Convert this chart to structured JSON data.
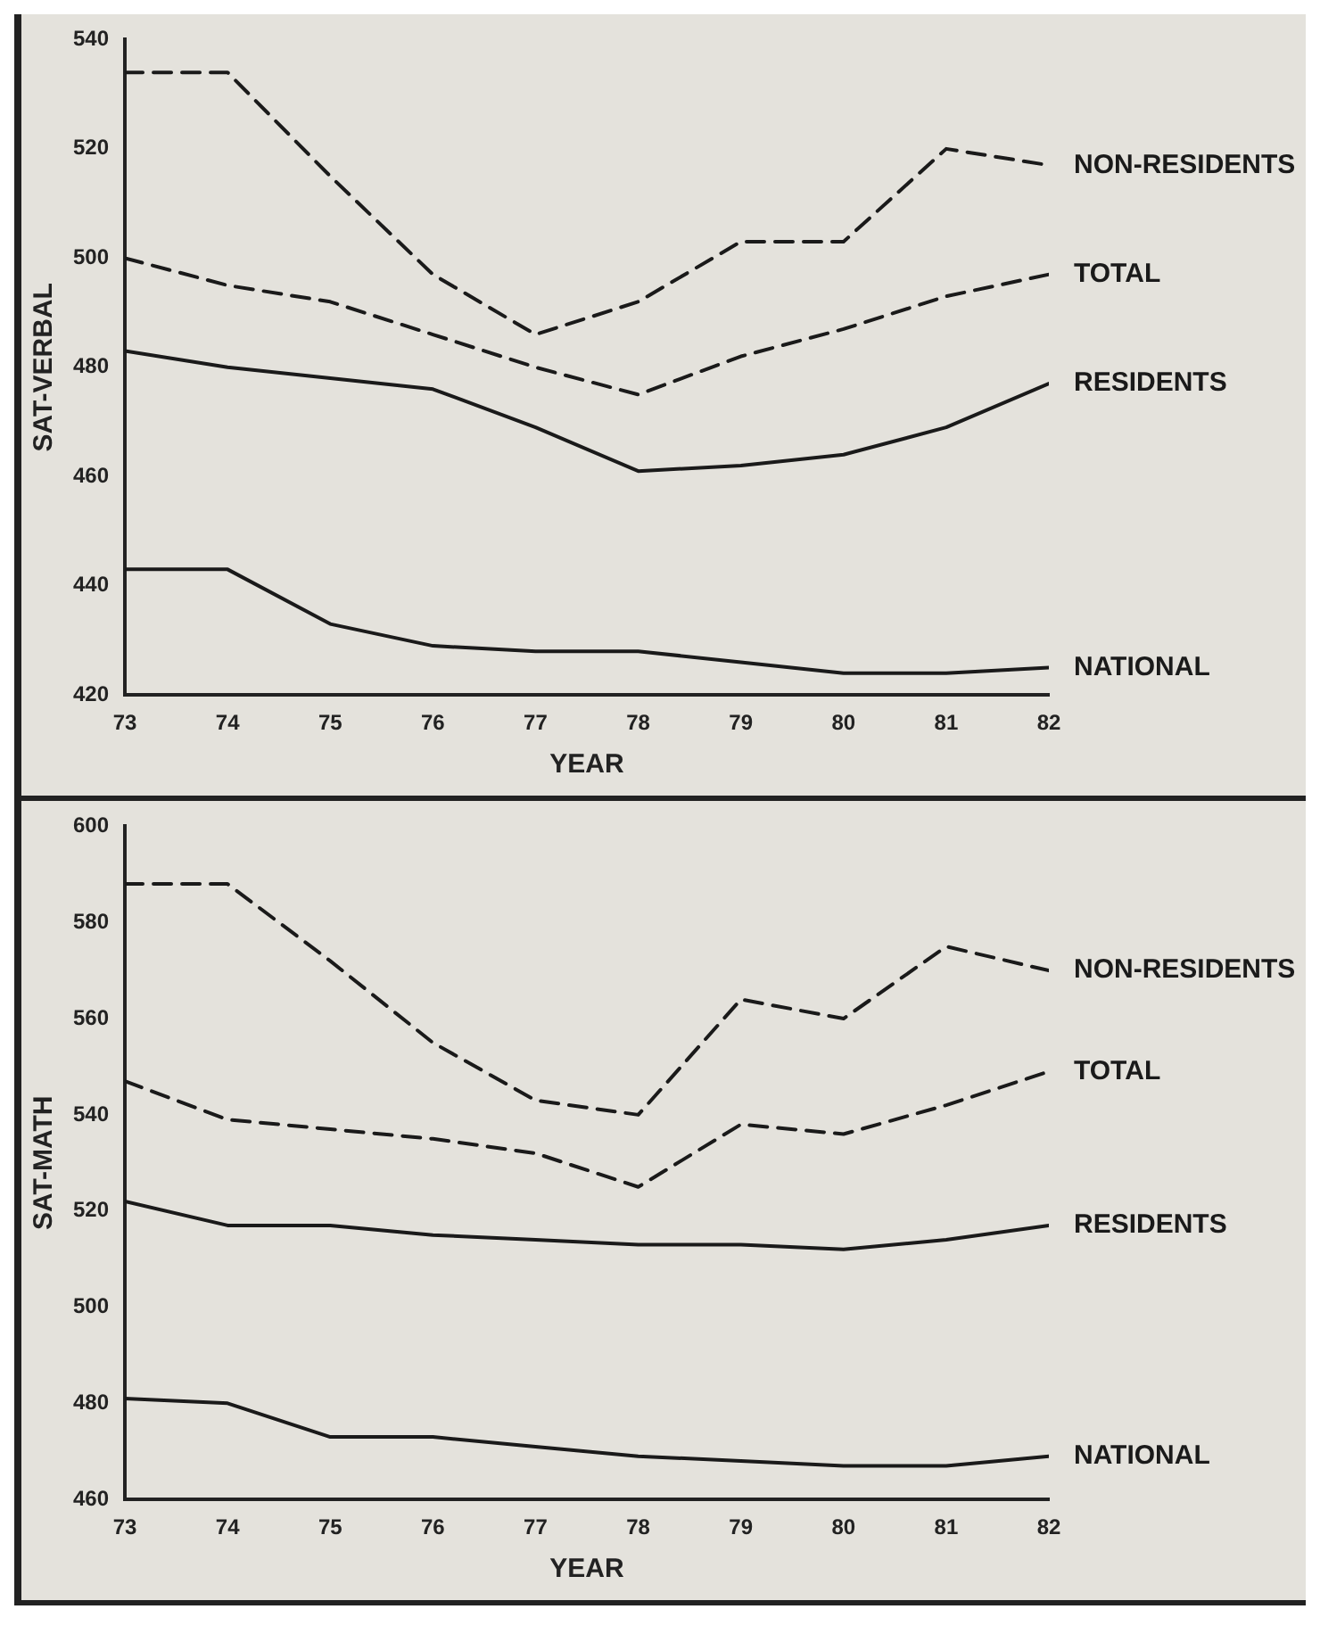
{
  "chart_data": [
    {
      "type": "line",
      "xlabel": "YEAR",
      "ylabel": "SAT-VERBAL",
      "x": [
        73,
        74,
        75,
        76,
        77,
        78,
        79,
        80,
        81,
        82
      ],
      "xlim": [
        73,
        82
      ],
      "xticks": [
        73,
        74,
        75,
        76,
        77,
        78,
        79,
        80,
        81,
        82
      ],
      "ylim": [
        420,
        540
      ],
      "yticks": [
        420,
        440,
        460,
        480,
        500,
        520,
        540
      ],
      "grid": false,
      "legend": false,
      "marker": "none",
      "series": [
        {
          "name": "NON-RESIDENTS",
          "color": "#1a1a1a",
          "line_style": "dashed",
          "values": [
            534,
            534,
            515,
            497,
            486,
            492,
            503,
            503,
            520,
            517
          ]
        },
        {
          "name": "TOTAL",
          "color": "#1a1a1a",
          "line_style": "dashed",
          "values": [
            500,
            495,
            492,
            486,
            480,
            475,
            482,
            487,
            493,
            497
          ]
        },
        {
          "name": "RESIDENTS",
          "color": "#1a1a1a",
          "line_style": "solid",
          "values": [
            483,
            480,
            478,
            476,
            469,
            461,
            462,
            464,
            469,
            477
          ]
        },
        {
          "name": "NATIONAL",
          "color": "#1a1a1a",
          "line_style": "solid",
          "values": [
            443,
            443,
            433,
            429,
            428,
            428,
            426,
            424,
            424,
            425
          ]
        }
      ]
    },
    {
      "type": "line",
      "xlabel": "YEAR",
      "ylabel": "SAT-MATH",
      "x": [
        73,
        74,
        75,
        76,
        77,
        78,
        79,
        80,
        81,
        82
      ],
      "xlim": [
        73,
        82
      ],
      "xticks": [
        73,
        74,
        75,
        76,
        77,
        78,
        79,
        80,
        81,
        82
      ],
      "ylim": [
        460,
        600
      ],
      "yticks": [
        460,
        480,
        500,
        520,
        540,
        560,
        580,
        600
      ],
      "grid": false,
      "legend": false,
      "marker": "none",
      "series": [
        {
          "name": "NON-RESIDENTS",
          "color": "#1a1a1a",
          "line_style": "dashed",
          "values": [
            588,
            588,
            572,
            555,
            543,
            540,
            564,
            560,
            575,
            570
          ]
        },
        {
          "name": "TOTAL",
          "color": "#1a1a1a",
          "line_style": "dashed",
          "values": [
            547,
            539,
            537,
            535,
            532,
            525,
            538,
            536,
            542,
            549
          ]
        },
        {
          "name": "RESIDENTS",
          "color": "#1a1a1a",
          "line_style": "solid",
          "values": [
            522,
            517,
            517,
            515,
            514,
            513,
            513,
            512,
            514,
            517
          ]
        },
        {
          "name": "NATIONAL",
          "color": "#1a1a1a",
          "line_style": "solid",
          "values": [
            481,
            480,
            473,
            473,
            471,
            469,
            468,
            467,
            467,
            469
          ]
        }
      ]
    }
  ]
}
